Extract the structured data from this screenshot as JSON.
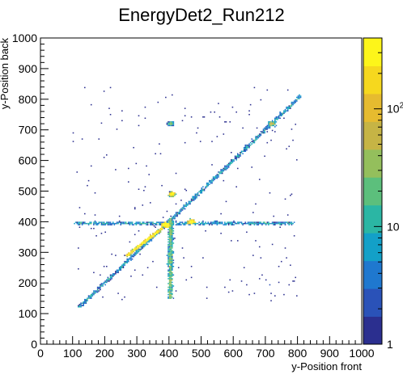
{
  "chart_data": {
    "type": "heatmap",
    "title": "EnergyDet2_Run212",
    "xlabel": "y-Position front",
    "ylabel": "y-Position back",
    "xlim": [
      0,
      1000
    ],
    "ylim": [
      0,
      1000
    ],
    "x_ticks": [
      "0",
      "100",
      "200",
      "300",
      "400",
      "500",
      "600",
      "700",
      "800",
      "900",
      "1000"
    ],
    "y_ticks": [
      "0",
      "100",
      "200",
      "300",
      "400",
      "500",
      "600",
      "700",
      "800",
      "900",
      "1000"
    ],
    "z_scale": "log",
    "zlim": [
      1,
      400
    ],
    "z_ticks": [
      {
        "value": 1,
        "label": "1"
      },
      {
        "value": 10,
        "label": "10"
      },
      {
        "value": 100,
        "label": "10",
        "exponent": "2"
      }
    ],
    "colormap": [
      "#2b2f8f",
      "#2a52b8",
      "#1f78cf",
      "#13a0c8",
      "#2bb6a4",
      "#5cbf7c",
      "#94bf5c",
      "#c6b445",
      "#e6bb2f",
      "#f6d81e",
      "#fdf51a"
    ],
    "grid": false,
    "features": [
      {
        "name": "diagonal band",
        "x_range": [
          120,
          810
        ],
        "y_from_x": "y = x",
        "intensity": 3
      },
      {
        "name": "horizontal band",
        "y": 395,
        "x_range": [
          105,
          790
        ],
        "intensity": 4
      },
      {
        "name": "vertical band",
        "x": 405,
        "y_range": [
          150,
          410
        ],
        "intensity": 6
      },
      {
        "name": "blob upper",
        "x": 410,
        "y": 490,
        "intensity": 30
      },
      {
        "name": "blob centre",
        "x": 390,
        "y": 390,
        "intensity": 200
      },
      {
        "name": "blob right",
        "x": 470,
        "y": 400,
        "intensity": 40
      },
      {
        "name": "streak",
        "x_range": [
          270,
          380
        ],
        "y_range": [
          290,
          380
        ],
        "intensity": 60
      },
      {
        "name": "cluster high",
        "x": 720,
        "y": 720,
        "intensity": 5
      },
      {
        "name": "cluster top",
        "x": 405,
        "y": 720,
        "intensity": 2
      }
    ]
  }
}
